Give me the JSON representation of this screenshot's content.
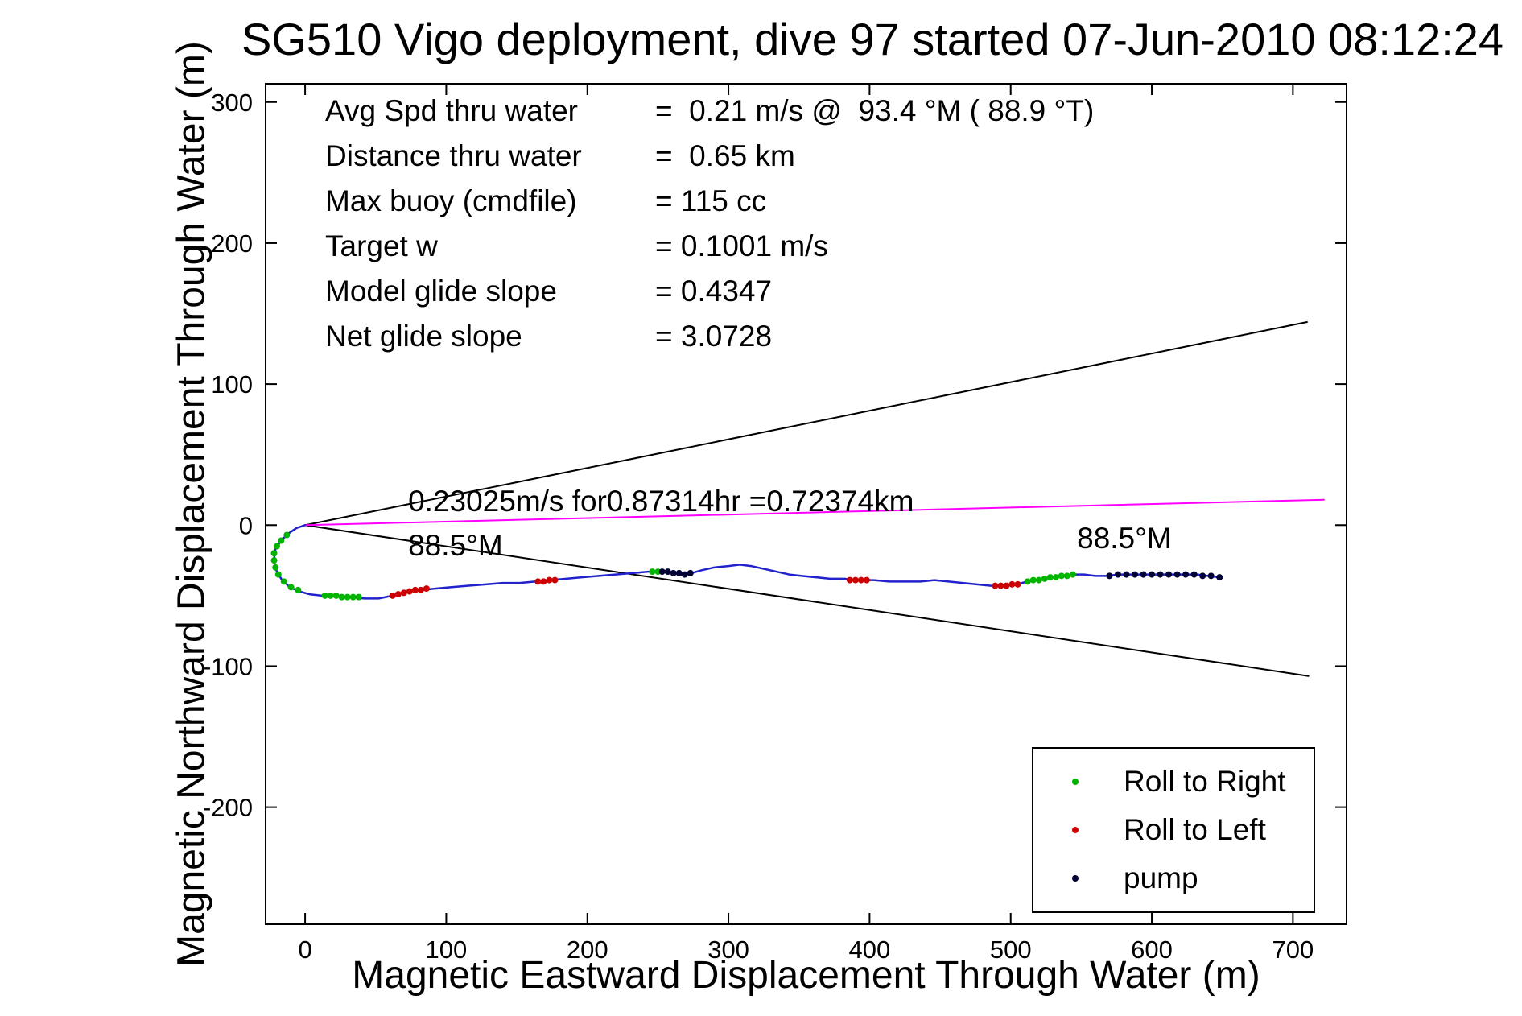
{
  "stats": {
    "rows": [
      {
        "label": "Avg Spd thru water",
        "value": "=  0.21 m/s @  93.4 °M ( 88.9 °T)"
      },
      {
        "label": "Distance thru water",
        "value": "=  0.65 km"
      },
      {
        "label": "Max buoy (cmdfile)",
        "value": "= 115 cc"
      },
      {
        "label": "Target w",
        "value": "= 0.1001 m/s"
      },
      {
        "label": "Model glide slope",
        "value": "= 0.4347"
      },
      {
        "label": "Net glide slope",
        "value": "= 3.0728"
      }
    ]
  },
  "chart_data": {
    "type": "line",
    "title": "SG510 Vigo deployment, dive 97 started 07-Jun-2010 08:12:24",
    "xlabel": "Magnetic Eastward Displacement Through Water (m)",
    "ylabel": "Magnetic Northward Displacement Through Water (m)",
    "xlim": [
      -28,
      738
    ],
    "ylim": [
      -283,
      313
    ],
    "xticks": [
      0,
      100,
      200,
      300,
      400,
      500,
      600,
      700
    ],
    "yticks": [
      -200,
      -100,
      0,
      100,
      200,
      300
    ],
    "grid": false,
    "legend_position": "lower right",
    "annotations": [
      {
        "text": "0.23025m/s for0.87314hr =0.72374km",
        "x": 73,
        "y": 16
      },
      {
        "text": "88.5°M",
        "x": 73,
        "y": -15
      },
      {
        "text": "88.5°M",
        "x": 547,
        "y": -10
      }
    ],
    "legend": {
      "items": [
        {
          "label": "Roll to Right",
          "color": "#00b400"
        },
        {
          "label": "Roll to Left",
          "color": "#cc0000"
        },
        {
          "label": "pump",
          "color": "#000033"
        }
      ]
    },
    "series": [
      {
        "name": "glide-slope-envelope-upper",
        "kind": "line",
        "color": "#000000",
        "width": 2,
        "points": [
          [
            0,
            0
          ],
          [
            710,
            144
          ]
        ]
      },
      {
        "name": "glide-slope-envelope-lower",
        "kind": "line",
        "color": "#000000",
        "width": 2,
        "points": [
          [
            0,
            0
          ],
          [
            711,
            -107
          ]
        ]
      },
      {
        "name": "course-made-good",
        "kind": "line",
        "color": "#ff00ff",
        "width": 2,
        "points": [
          [
            0,
            0
          ],
          [
            722,
            18
          ]
        ]
      },
      {
        "name": "dive-track-through-water",
        "kind": "line",
        "color": "#2222cc",
        "width": 2.5,
        "points": [
          [
            0,
            0
          ],
          [
            -6,
            -2
          ],
          [
            -12,
            -6
          ],
          [
            -17,
            -11
          ],
          [
            -21,
            -17
          ],
          [
            -22,
            -24
          ],
          [
            -21,
            -31
          ],
          [
            -17,
            -38
          ],
          [
            -11,
            -44
          ],
          [
            -4,
            -47
          ],
          [
            3,
            -49
          ],
          [
            12,
            -50
          ],
          [
            22,
            -50
          ],
          [
            32,
            -51
          ],
          [
            42,
            -52
          ],
          [
            52,
            -52
          ],
          [
            62,
            -50
          ],
          [
            72,
            -47
          ],
          [
            82,
            -46
          ],
          [
            92,
            -45
          ],
          [
            103,
            -44
          ],
          [
            115,
            -43
          ],
          [
            128,
            -42
          ],
          [
            140,
            -41
          ],
          [
            152,
            -41
          ],
          [
            163,
            -40
          ],
          [
            174,
            -39
          ],
          [
            185,
            -38
          ],
          [
            196,
            -37
          ],
          [
            208,
            -36
          ],
          [
            220,
            -35
          ],
          [
            232,
            -34
          ],
          [
            243,
            -33
          ],
          [
            252,
            -33
          ],
          [
            260,
            -34
          ],
          [
            267,
            -35
          ],
          [
            274,
            -34
          ],
          [
            281,
            -32
          ],
          [
            290,
            -30
          ],
          [
            300,
            -29
          ],
          [
            308,
            -28
          ],
          [
            316,
            -29
          ],
          [
            325,
            -31
          ],
          [
            334,
            -33
          ],
          [
            343,
            -35
          ],
          [
            352,
            -36
          ],
          [
            362,
            -37
          ],
          [
            372,
            -38
          ],
          [
            382,
            -38
          ],
          [
            392,
            -39
          ],
          [
            403,
            -39
          ],
          [
            414,
            -40
          ],
          [
            425,
            -40
          ],
          [
            436,
            -40
          ],
          [
            446,
            -39
          ],
          [
            456,
            -40
          ],
          [
            466,
            -41
          ],
          [
            476,
            -42
          ],
          [
            486,
            -43
          ],
          [
            495,
            -43
          ],
          [
            504,
            -42
          ],
          [
            512,
            -40
          ],
          [
            520,
            -39
          ],
          [
            528,
            -37
          ],
          [
            536,
            -36
          ],
          [
            544,
            -35
          ],
          [
            552,
            -35
          ],
          [
            560,
            -36
          ],
          [
            568,
            -36
          ],
          [
            576,
            -35
          ],
          [
            584,
            -35
          ],
          [
            592,
            -35
          ],
          [
            600,
            -35
          ],
          [
            608,
            -35
          ],
          [
            616,
            -35
          ],
          [
            624,
            -35
          ],
          [
            632,
            -35
          ],
          [
            640,
            -36
          ],
          [
            648,
            -37
          ]
        ]
      },
      {
        "name": "roll-to-right-markers",
        "kind": "scatter",
        "color": "#00b400",
        "r": 4,
        "points": [
          [
            -13,
            -7
          ],
          [
            -17,
            -11
          ],
          [
            -20,
            -15
          ],
          [
            -22,
            -20
          ],
          [
            -22,
            -25
          ],
          [
            -21,
            -30
          ],
          [
            -19,
            -35
          ],
          [
            -15,
            -40
          ],
          [
            -10,
            -44
          ],
          [
            -5,
            -46
          ],
          [
            14,
            -50
          ],
          [
            18,
            -50
          ],
          [
            22,
            -50
          ],
          [
            26,
            -51
          ],
          [
            30,
            -51
          ],
          [
            34,
            -51
          ],
          [
            38,
            -51
          ],
          [
            246,
            -33
          ],
          [
            250,
            -33
          ],
          [
            512,
            -40
          ],
          [
            516,
            -39
          ],
          [
            520,
            -39
          ],
          [
            524,
            -38
          ],
          [
            528,
            -37
          ],
          [
            532,
            -37
          ],
          [
            536,
            -36
          ],
          [
            540,
            -36
          ],
          [
            544,
            -35
          ]
        ]
      },
      {
        "name": "roll-to-left-markers",
        "kind": "scatter",
        "color": "#cc0000",
        "r": 4,
        "points": [
          [
            62,
            -50
          ],
          [
            66,
            -49
          ],
          [
            70,
            -48
          ],
          [
            74,
            -47
          ],
          [
            78,
            -46
          ],
          [
            82,
            -46
          ],
          [
            86,
            -45
          ],
          [
            165,
            -40
          ],
          [
            169,
            -40
          ],
          [
            173,
            -39
          ],
          [
            177,
            -39
          ],
          [
            386,
            -39
          ],
          [
            390,
            -39
          ],
          [
            394,
            -39
          ],
          [
            398,
            -39
          ],
          [
            489,
            -43
          ],
          [
            493,
            -43
          ],
          [
            497,
            -43
          ],
          [
            501,
            -42
          ],
          [
            505,
            -42
          ]
        ]
      },
      {
        "name": "pump-markers",
        "kind": "scatter",
        "color": "#000033",
        "r": 4,
        "points": [
          [
            253,
            -33
          ],
          [
            257,
            -33
          ],
          [
            261,
            -34
          ],
          [
            265,
            -34
          ],
          [
            269,
            -35
          ],
          [
            273,
            -34
          ],
          [
            570,
            -36
          ],
          [
            576,
            -35
          ],
          [
            582,
            -35
          ],
          [
            588,
            -35
          ],
          [
            594,
            -35
          ],
          [
            600,
            -35
          ],
          [
            606,
            -35
          ],
          [
            612,
            -35
          ],
          [
            618,
            -35
          ],
          [
            624,
            -35
          ],
          [
            630,
            -35
          ],
          [
            636,
            -36
          ],
          [
            642,
            -36
          ],
          [
            648,
            -37
          ]
        ]
      }
    ]
  }
}
